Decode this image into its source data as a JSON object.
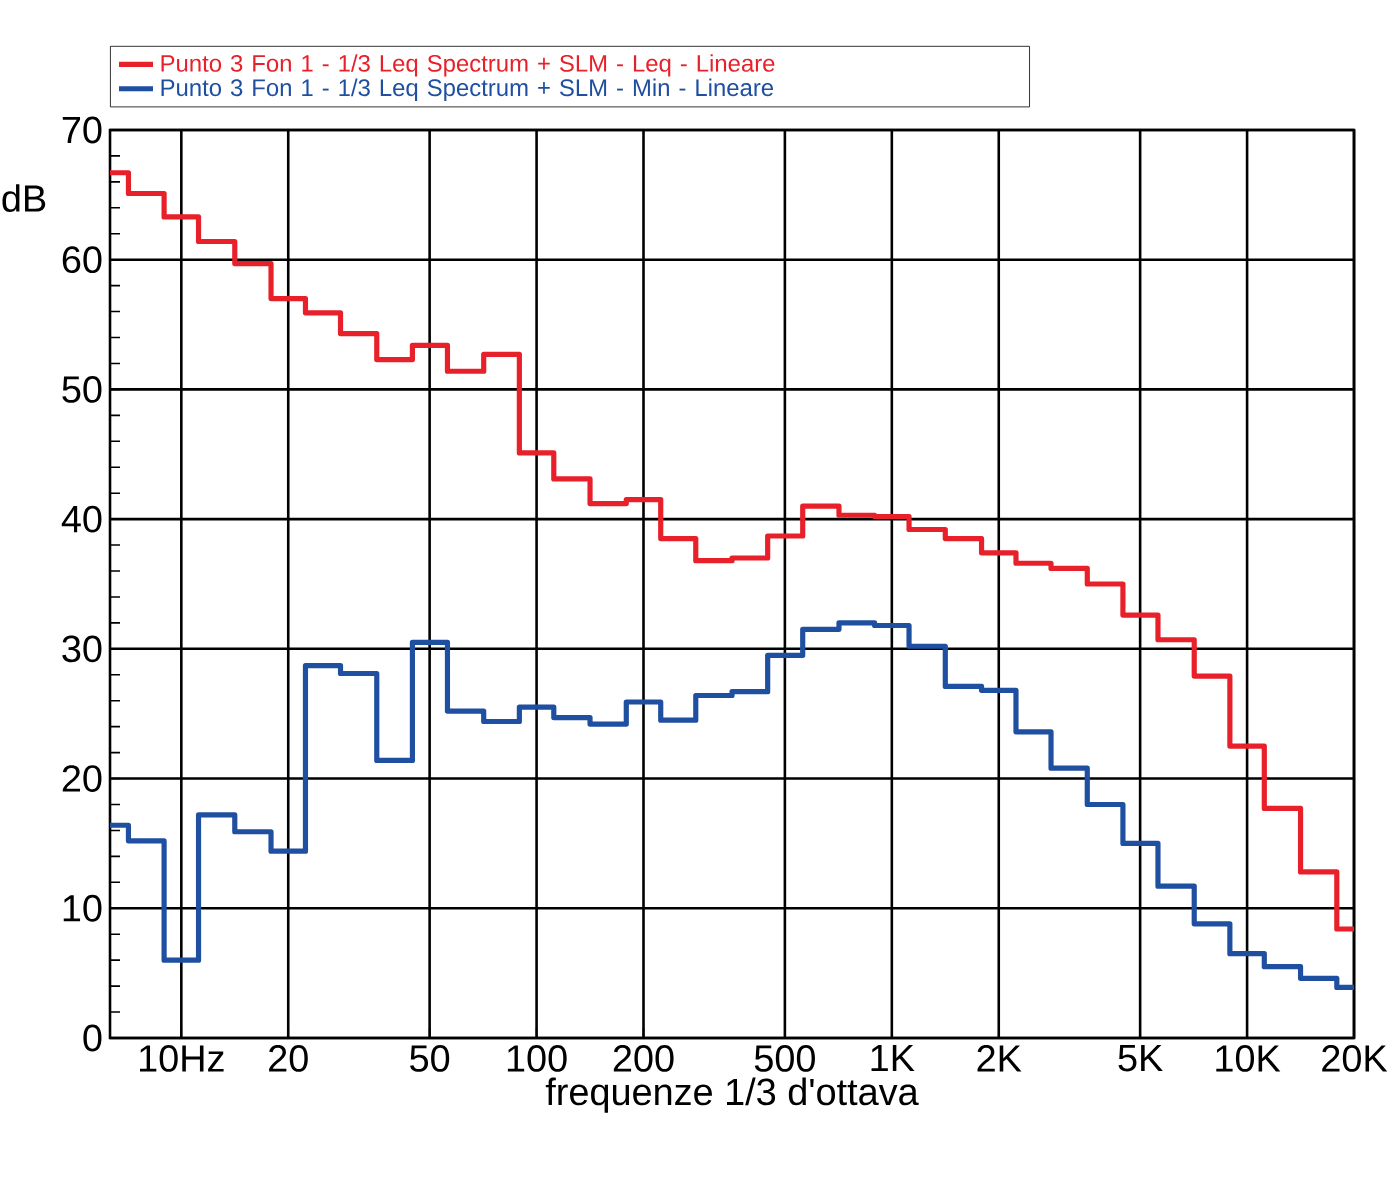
{
  "chart_data": {
    "type": "step",
    "xlabel": "frequenze 1/3 d'ottava",
    "ylabel": "dB",
    "x": [
      6.3,
      8,
      10,
      12.5,
      16,
      20,
      25,
      31.5,
      40,
      50,
      63,
      80,
      100,
      125,
      160,
      200,
      250,
      315,
      400,
      500,
      630,
      800,
      1000,
      1250,
      1600,
      2000,
      2500,
      3150,
      4000,
      5000,
      6300,
      8000,
      10000,
      12500,
      16000,
      20000
    ],
    "series": [
      {
        "name": "Punto 3 Fon 1 - 1/3 Leq Spectrum + SLM - Leq - Lineare",
        "color": "#e8202a",
        "values": [
          66.7,
          65.1,
          63.3,
          61.4,
          59.7,
          57.0,
          55.9,
          54.3,
          52.3,
          53.4,
          51.4,
          52.7,
          45.1,
          43.1,
          41.2,
          41.5,
          38.5,
          36.8,
          37.0,
          38.7,
          41.0,
          40.3,
          40.2,
          39.2,
          38.5,
          37.4,
          36.6,
          36.2,
          35.0,
          32.6,
          30.7,
          27.9,
          22.5,
          17.7,
          12.8,
          8.4
        ]
      },
      {
        "name": "Punto 3 Fon 1 - 1/3 Leq Spectrum + SLM - Min - Lineare",
        "color": "#1f4fa0",
        "values": [
          16.4,
          15.2,
          6.0,
          17.2,
          15.9,
          14.4,
          28.7,
          28.1,
          21.4,
          30.5,
          25.2,
          24.4,
          25.5,
          24.7,
          24.2,
          25.9,
          24.5,
          26.4,
          26.7,
          29.5,
          31.5,
          32.0,
          31.8,
          30.2,
          27.1,
          26.8,
          23.6,
          20.8,
          18.0,
          15.0,
          11.7,
          8.8,
          6.5,
          5.5,
          4.6,
          3.9
        ]
      }
    ],
    "log": "x",
    "xlim": [
      6.3,
      20000
    ],
    "xticks": [
      {
        "value": 10,
        "label": "10Hz"
      },
      20,
      50,
      100,
      200,
      500,
      {
        "value": 1000,
        "label": "1K"
      },
      {
        "value": 2000,
        "label": "2K"
      },
      {
        "value": 5000,
        "label": "5K"
      },
      {
        "value": 10000,
        "label": "10K"
      },
      {
        "value": 20000,
        "label": "20K"
      }
    ],
    "ylim": [
      0,
      70
    ],
    "yticks": [
      0,
      10,
      20,
      30,
      40,
      50,
      60,
      70
    ],
    "grid": true,
    "legend": "top",
    "line_style": "solid",
    "marker": "none"
  }
}
